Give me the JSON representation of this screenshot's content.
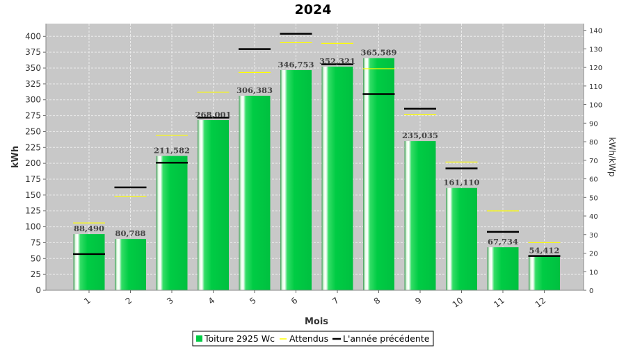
{
  "chart_data": {
    "type": "bar",
    "title": "2024",
    "xlabel": "Mois",
    "ylabel": "kWh",
    "ylabel_right": "kWh/kWp",
    "categories": [
      "1",
      "2",
      "3",
      "4",
      "5",
      "6",
      "7",
      "8",
      "9",
      "10",
      "11",
      "12"
    ],
    "series": [
      {
        "name": "Toiture 2925 Wc",
        "kind": "bar",
        "values": [
          88.49,
          80.788,
          211.582,
          268.001,
          306.383,
          346.753,
          352.321,
          365.589,
          235.035,
          161.11,
          67.734,
          54.412
        ],
        "labels": [
          "88,490",
          "80,788",
          "211,582",
          "268,001",
          "306,383",
          "346,753",
          "352,321",
          "365,589",
          "235,035",
          "161,110",
          "67,734",
          "54,412"
        ]
      },
      {
        "name": "Attendus",
        "kind": "marker",
        "values": [
          106,
          148,
          244,
          312,
          343,
          390,
          389,
          349,
          277,
          202,
          125,
          75
        ]
      },
      {
        "name": "L'année précédente",
        "kind": "marker",
        "values": [
          57,
          162,
          201,
          272,
          380,
          404,
          356,
          309,
          286,
          192,
          92,
          54
        ]
      }
    ],
    "ylim": [
      0,
      420
    ],
    "yticks": [
      0,
      25,
      50,
      75,
      100,
      125,
      150,
      175,
      200,
      225,
      250,
      275,
      300,
      325,
      350,
      375,
      400
    ],
    "ylim_right": [
      0,
      143.6
    ],
    "yticks_right": [
      0,
      10,
      20,
      30,
      40,
      50,
      60,
      70,
      80,
      90,
      100,
      110,
      120,
      130,
      140
    ],
    "grid": true,
    "legend_position": "bottom",
    "colors": {
      "plot_bg": "#c8c8c8",
      "bar": "#00cc44",
      "expected": "#ffff00",
      "previous": "#000000",
      "grid": "#e8e8e8"
    }
  }
}
